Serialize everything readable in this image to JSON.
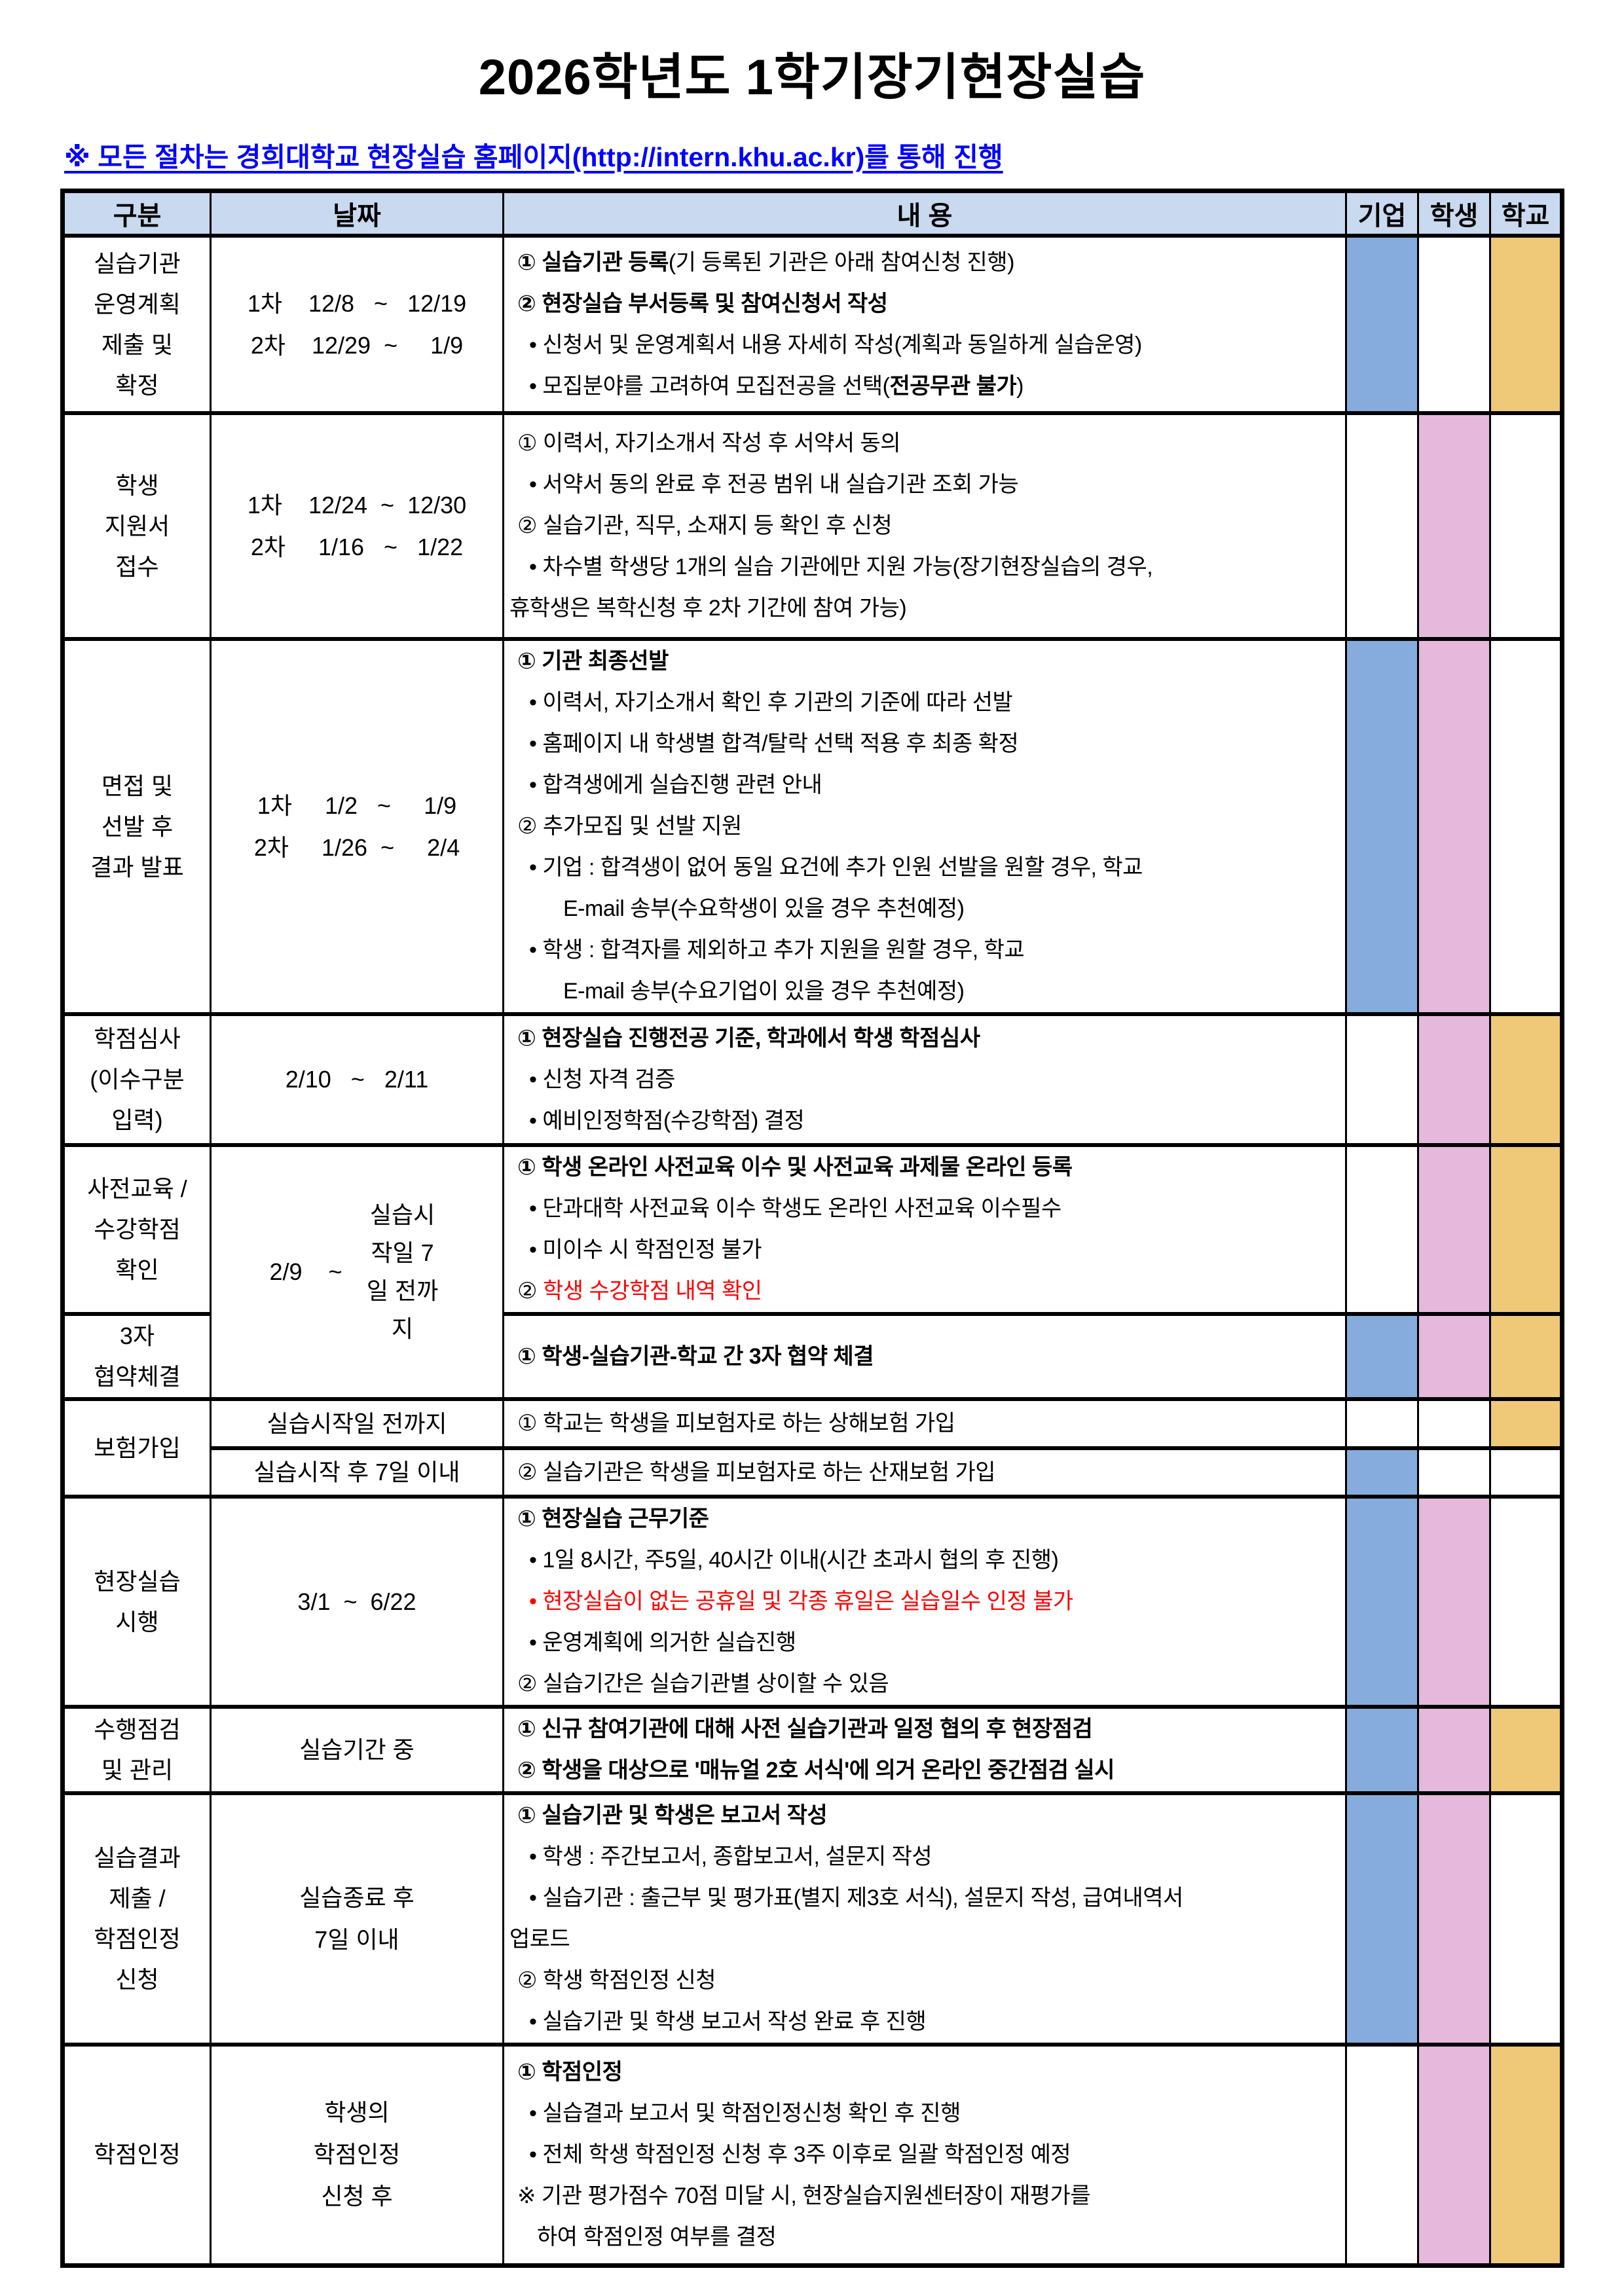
{
  "title": "2026학년도 1학기장기현장실습",
  "notice": "※ 모든 절차는 경희대학교 현장실습 홈페이지(http://intern.khu.ac.kr)를 통해 진행",
  "colors": {
    "header_bg": "#C9D9F0",
    "company": "#85ACDC",
    "student": "#E6B9DC",
    "school": "#EFC878",
    "link": "#0000FF",
    "warning": "#FF0000"
  },
  "table": {
    "headers": [
      "구분",
      "날짜",
      "내 용",
      "기업",
      "학생",
      "학교"
    ],
    "rows": [
      {
        "cat": "실습기관\n운영계획\n제출 및\n확정",
        "date": "1차    12/8   ~   12/19\n2차    12/29  ~     1/9",
        "lines": [
          {
            "i": 1,
            "s": [
              {
                "t": "① 실습기관 등록",
                "b": true
              },
              {
                "t": "(기 등록된 기관은 아래 참여신청 진행)"
              }
            ]
          },
          {
            "i": 1,
            "s": [
              {
                "t": "② 현장실습 부서등록 및 참여신청서 작성",
                "b": true
              }
            ]
          },
          {
            "i": 2,
            "s": [
              {
                "t": "• 신청서 및 운영계획서 내용 자세히 작성(계획과 동일하게 실습운영)"
              }
            ]
          },
          {
            "i": 2,
            "s": [
              {
                "t": "• 모집분야를 고려하여 모집전공을 선택("
              },
              {
                "t": "전공무관 불가",
                "b": true
              },
              {
                "t": ")"
              }
            ]
          }
        ],
        "marks": {
          "c": true,
          "s": false,
          "h": true
        }
      },
      {
        "cat": "학생\n지원서\n접수",
        "date": "1차    12/24  ~  12/30\n2차     1/16   ~   1/22",
        "lines": [
          {
            "i": 1,
            "s": [
              {
                "t": "① 이력서, 자기소개서 작성 후 서약서 동의"
              }
            ]
          },
          {
            "i": 2,
            "s": [
              {
                "t": "• 서약서 동의 완료 후 전공 범위 내 실습기관 조회 가능"
              }
            ]
          },
          {
            "i": 1,
            "s": [
              {
                "t": "② 실습기관, 직무, 소재지 등 확인 후 신청"
              }
            ]
          },
          {
            "i": 2,
            "s": [
              {
                "t": "• 차수별 학생당 1개의 실습 기관에만 지원 가능(장기현장실습의 경우,"
              }
            ]
          },
          {
            "i": 0,
            "s": [
              {
                "t": "휴학생은 복학신청 후 2차 기간에 참여 가능)"
              }
            ]
          }
        ],
        "marks": {
          "c": false,
          "s": true,
          "h": false
        }
      },
      {
        "cat": "면접 및\n선발 후\n결과 발표",
        "date": "1차     1/2   ~     1/9\n2차     1/26  ~     2/4",
        "lines": [
          {
            "i": 1,
            "s": [
              {
                "t": "① 기관 최종선발",
                "b": true
              }
            ]
          },
          {
            "i": 2,
            "s": [
              {
                "t": "• 이력서, 자기소개서 확인 후 기관의 기준에 따라 선발"
              }
            ]
          },
          {
            "i": 2,
            "s": [
              {
                "t": "• 홈페이지 내 학생별 합격/탈락 선택 적용 후 최종 확정"
              }
            ]
          },
          {
            "i": 2,
            "s": [
              {
                "t": "• 합격생에게 실습진행 관련 안내"
              }
            ]
          },
          {
            "i": 1,
            "s": [
              {
                "t": "② 추가모집 및 선발 지원"
              }
            ]
          },
          {
            "i": 2,
            "s": [
              {
                "t": "• 기업 : 합격생이 없어 동일 요건에 추가 인원 선발을 원할 경우, 학교"
              }
            ]
          },
          {
            "i": 3,
            "s": [
              {
                "t": "E-mail 송부(수요학생이 있을 경우 추천예정)"
              }
            ]
          },
          {
            "i": 2,
            "s": [
              {
                "t": "• 학생 : 합격자를 제외하고 추가 지원을 원할 경우, 학교"
              }
            ]
          },
          {
            "i": 3,
            "s": [
              {
                "t": "E-mail 송부(수요기업이 있을 경우 추천예정)"
              }
            ]
          }
        ],
        "marks": {
          "c": true,
          "s": true,
          "h": false
        }
      },
      {
        "cat": "학점심사\n(이수구분\n입력)",
        "date": "2/10   ~   2/11",
        "lines": [
          {
            "i": 1,
            "s": [
              {
                "t": "① 현장실습 진행전공 기준, 학과에서 학생 학점심사",
                "b": true
              }
            ]
          },
          {
            "i": 2,
            "s": [
              {
                "t": "• 신청 자격 검증"
              }
            ]
          },
          {
            "i": 2,
            "s": [
              {
                "t": "• 예비인정학점(수강학점) 결정"
              }
            ]
          }
        ],
        "marks": {
          "c": false,
          "s": true,
          "h": true
        }
      },
      {
        "cat": "사전교육 /\n수강학점\n확인",
        "date": {
          "left": "2/9    ~",
          "right": "실습시작일 7일 전까지"
        },
        "datespan": 2,
        "lines": [
          {
            "i": 1,
            "s": [
              {
                "t": "① 학생 온라인 사전교육 이수 및 사전교육 과제물 온라인 등록",
                "b": true
              }
            ]
          },
          {
            "i": 2,
            "s": [
              {
                "t": "• 단과대학 사전교육 이수 학생도 온라인 사전교육 이수필수"
              }
            ]
          },
          {
            "i": 2,
            "s": [
              {
                "t": "• 미이수 시 학점인정 불가"
              }
            ]
          },
          {
            "i": 1,
            "s": [
              {
                "t": "② "
              },
              {
                "t": "학생 수강학점 내역 확인",
                "r": true
              }
            ]
          }
        ],
        "marks": {
          "c": false,
          "s": true,
          "h": true
        }
      },
      {
        "cat": "3자\n협약체결",
        "lines": [
          {
            "i": 1,
            "s": [
              {
                "t": "① 학생-실습기관-학교 간 3자 협약 체결",
                "b": true
              }
            ]
          }
        ],
        "marks": {
          "c": true,
          "s": true,
          "h": true
        }
      },
      {
        "cat": "보험가입",
        "catspan": 2,
        "date": "실습시작일 전까지",
        "lines": [
          {
            "i": 1,
            "s": [
              {
                "t": "① 학교는 학생을 피보험자로 하는 상해보험 가입"
              }
            ]
          }
        ],
        "marks": {
          "c": false,
          "s": false,
          "h": true
        }
      },
      {
        "date": "실습시작 후 7일 이내",
        "lines": [
          {
            "i": 1,
            "s": [
              {
                "t": "② 실습기관은 학생을 피보험자로 하는 산재보험 가입"
              }
            ]
          }
        ],
        "marks": {
          "c": true,
          "s": false,
          "h": false
        }
      },
      {
        "cat": "현장실습\n시행",
        "date": "3/1  ~  6/22",
        "lines": [
          {
            "i": 1,
            "s": [
              {
                "t": "① 현장실습 근무기준",
                "b": true
              }
            ]
          },
          {
            "i": 2,
            "s": [
              {
                "t": "• 1일 8시간, 주5일, 40시간 이내(시간 초과시 협의 후 진행)"
              }
            ]
          },
          {
            "i": 2,
            "s": [
              {
                "t": "• 현장실습이 없는 공휴일 및 각종 휴일은 실습일수 인정 불가",
                "r": true
              }
            ]
          },
          {
            "i": 2,
            "s": [
              {
                "t": "• 운영계획에 의거한 실습진행"
              }
            ]
          },
          {
            "i": 1,
            "s": [
              {
                "t": "② 실습기간은 실습기관별 상이할 수 있음"
              }
            ]
          }
        ],
        "marks": {
          "c": true,
          "s": true,
          "h": false
        }
      },
      {
        "cat": "수행점검\n및 관리",
        "date": "실습기간 중",
        "lines": [
          {
            "i": 1,
            "s": [
              {
                "t": "① 신규 참여기관에 대해 사전 실습기관과 일정 협의 후 현장점검",
                "b": true
              }
            ]
          },
          {
            "i": 1,
            "s": [
              {
                "t": "② 학생을 대상으로 '매뉴얼 2호 서식'에 의거 온라인 중간점검 실시",
                "b": true
              }
            ]
          }
        ],
        "marks": {
          "c": true,
          "s": true,
          "h": true
        }
      },
      {
        "cat": "실습결과\n제출 /\n학점인정\n신청",
        "date": "실습종료 후\n7일 이내",
        "lines": [
          {
            "i": 1,
            "s": [
              {
                "t": "① 실습기관 및 학생은 보고서 작성",
                "b": true
              }
            ]
          },
          {
            "i": 2,
            "s": [
              {
                "t": "• 학생 : 주간보고서, 종합보고서, 설문지 작성"
              }
            ]
          },
          {
            "i": 2,
            "s": [
              {
                "t": "• 실습기관 : 출근부 및 평가표(별지 제3호 서식), 설문지 작성, 급여내역서"
              }
            ]
          },
          {
            "i": 0,
            "s": [
              {
                "t": "업로드"
              }
            ]
          },
          {
            "i": 1,
            "s": [
              {
                "t": "② 학생 학점인정 신청"
              }
            ]
          },
          {
            "i": 2,
            "s": [
              {
                "t": "• 실습기관 및 학생 보고서 작성 완료 후 진행"
              }
            ]
          }
        ],
        "marks": {
          "c": true,
          "s": true,
          "h": false
        }
      },
      {
        "cat": "학점인정",
        "date": "학생의\n학점인정\n신청 후",
        "lines": [
          {
            "i": 1,
            "s": [
              {
                "t": "① 학점인정",
                "b": true
              }
            ]
          },
          {
            "i": 2,
            "s": [
              {
                "t": "• 실습결과 보고서 및 학점인정신청 확인 후 진행"
              }
            ]
          },
          {
            "i": 2,
            "s": [
              {
                "t": "• 전체 학생 학점인정 신청 후 3주 이후로 일괄 학점인정 예정"
              }
            ]
          },
          {
            "i": 1,
            "s": [
              {
                "t": "※ 기관 평가점수 70점 미달 시, 현장실습지원센터장이 재평가를"
              }
            ]
          },
          {
            "i": 4,
            "s": [
              {
                "t": "하여 학점인정 여부를 결정"
              }
            ]
          }
        ],
        "marks": {
          "c": false,
          "s": true,
          "h": true
        }
      }
    ]
  }
}
